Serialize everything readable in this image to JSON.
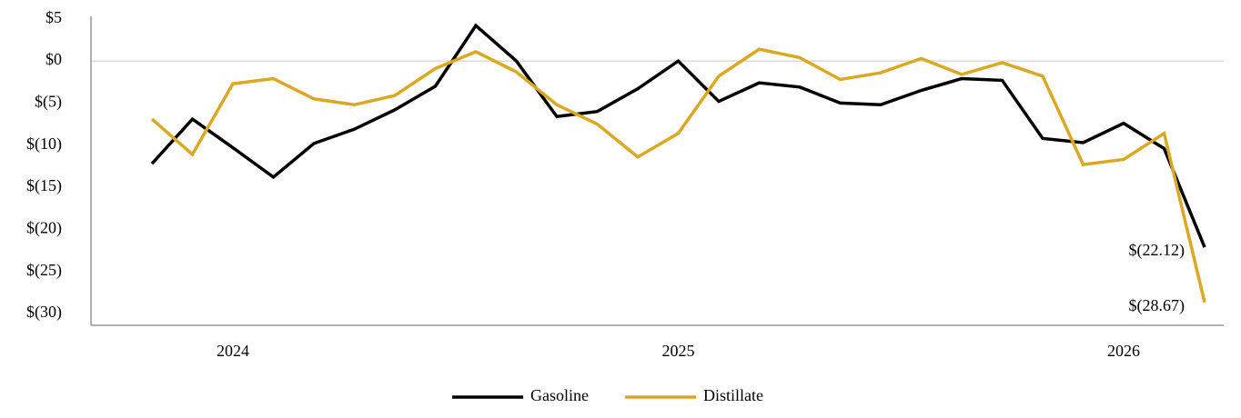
{
  "chart_data": {
    "type": "line",
    "categories": [
      null,
      null,
      "2024",
      null,
      null,
      null,
      null,
      null,
      null,
      null,
      null,
      null,
      null,
      "2025",
      null,
      null,
      null,
      null,
      null,
      null,
      null,
      null,
      null,
      null,
      "2026",
      null,
      null
    ],
    "series": [
      {
        "name": "Gasoline",
        "color": "#000000",
        "values": [
          -12.2,
          -6.9,
          -10.3,
          -13.8,
          -9.8,
          -8.1,
          -5.8,
          -3.0,
          4.2,
          0,
          -6.6,
          -6.0,
          -3.3,
          0,
          -4.8,
          -2.6,
          -3.1,
          -5.0,
          -5.2,
          -3.5,
          -2.1,
          -2.3,
          -9.2,
          -9.7,
          -7.4,
          -10.4,
          -22.12
        ],
        "value_labels": [
          null,
          null,
          null,
          null,
          null,
          null,
          null,
          null,
          null,
          null,
          null,
          null,
          null,
          null,
          null,
          null,
          null,
          null,
          null,
          null,
          null,
          null,
          null,
          null,
          null,
          null,
          "$(22.12)"
        ]
      },
      {
        "name": "Distillate",
        "color": "#dba824",
        "values": [
          -6.9,
          -11.1,
          -2.7,
          -2.1,
          -4.5,
          -5.2,
          -4.1,
          -0.9,
          1.1,
          -1.3,
          -5.2,
          -7.5,
          -11.4,
          -8.6,
          -1.8,
          1.4,
          0.4,
          -2.2,
          -1.4,
          0.3,
          -1.6,
          -0.2,
          -1.8,
          -12.3,
          -11.7,
          -8.6,
          -28.67
        ],
        "value_labels": [
          null,
          null,
          null,
          null,
          null,
          null,
          null,
          null,
          null,
          null,
          null,
          null,
          null,
          null,
          null,
          null,
          null,
          null,
          null,
          null,
          null,
          null,
          null,
          null,
          null,
          null,
          "$(28.67)"
        ]
      }
    ],
    "ylim": [
      -31.4,
      5.3
    ],
    "yticks": [
      {
        "value": 5,
        "label": "$5"
      },
      {
        "value": 0,
        "label": "$0"
      },
      {
        "value": -5,
        "label": "$(5)"
      },
      {
        "value": -10,
        "label": "$(10)"
      },
      {
        "value": -15,
        "label": "$(15)"
      },
      {
        "value": -20,
        "label": "$(20)"
      },
      {
        "value": -25,
        "label": "$(25)"
      },
      {
        "value": -30,
        "label": "$(30)"
      }
    ],
    "grid": false,
    "legend": "bottom"
  }
}
